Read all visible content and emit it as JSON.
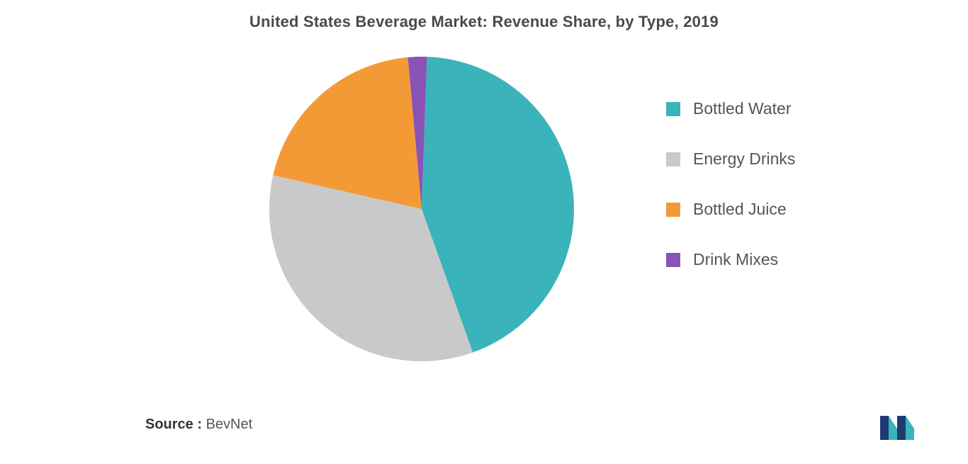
{
  "chart": {
    "type": "pie",
    "title": "United States Beverage Market: Revenue Share, by Type, 2019",
    "title_fontsize": 22,
    "title_color": "#4a4a4a",
    "background_color": "#ffffff",
    "start_angle_deg": 2,
    "direction": "clockwise",
    "slices": [
      {
        "label": "Bottled Water",
        "value": 44,
        "color": "#3bb3ba"
      },
      {
        "label": "Energy Drinks",
        "value": 34,
        "color": "#c9c9c9"
      },
      {
        "label": "Bottled Juice",
        "value": 20,
        "color": "#f39a37"
      },
      {
        "label": "Drink Mixes",
        "value": 2,
        "color": "#8a53b6"
      }
    ],
    "legend": {
      "position": "right",
      "item_fontsize": 23,
      "item_color": "#555555",
      "swatch_size": 20,
      "gap": 44
    }
  },
  "source": {
    "label": "Source :",
    "value": "BevNet",
    "fontsize": 20
  },
  "logo": {
    "name": "mordor-intelligence-logo",
    "bar_color": "#1f3b73",
    "tri_color": "#3bb3ba"
  }
}
